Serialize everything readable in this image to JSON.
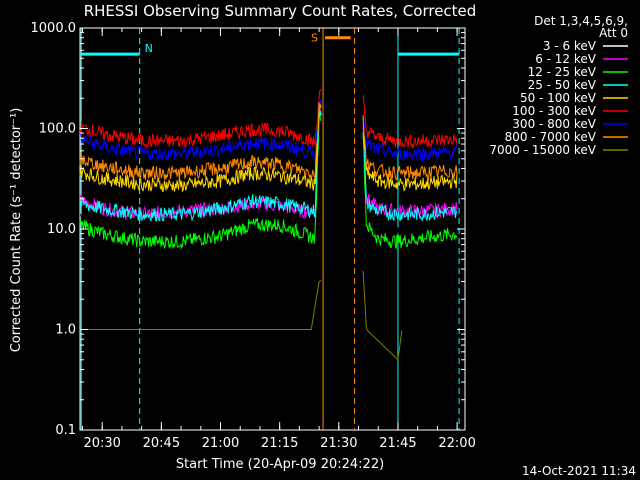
{
  "chart_data": {
    "type": "line",
    "title": "RHESSI Observing Summary Count Rates, Corrected",
    "xlabel": "Start Time (20-Apr-09 20:24:22)",
    "ylabel": "Corrected Count Rate (s⁻¹ detector⁻¹)",
    "yscale": "log",
    "ylim": [
      0.1,
      1000
    ],
    "xlim": [
      "20:24:22",
      "22:02"
    ],
    "x_ticks": [
      "20:30",
      "20:45",
      "21:00",
      "21:15",
      "21:30",
      "21:45",
      "22:00"
    ],
    "y_ticks": [
      "0.1",
      "1.0",
      "10.0",
      "100.0",
      "1000.0"
    ],
    "legend_header": [
      "Det 1,3,4,5,6,9,",
      "Att 0"
    ],
    "legend_position": "right",
    "annotations": {
      "night_label": "N",
      "saa_label": "S",
      "night_color": "#00ffff",
      "saa_color": "#ff8c00"
    },
    "series": [
      {
        "name": "3 - 6 keV",
        "color": "#000000",
        "x": [
          "20:24",
          "20:30",
          "20:40",
          "20:50",
          "21:00",
          "21:08",
          "21:15",
          "21:21",
          "21:24",
          "21:25",
          "21:36",
          "21:37",
          "21:40",
          "21:45",
          "21:50",
          "22:00"
        ],
        "values": [
          14,
          11,
          9,
          9,
          10,
          12,
          12,
          10,
          9,
          150,
          150,
          14,
          9,
          9,
          9,
          10
        ]
      },
      {
        "name": "6 - 12 keV",
        "color": "#ff00ff",
        "x": [
          "20:24",
          "20:30",
          "20:40",
          "20:50",
          "21:00",
          "21:08",
          "21:15",
          "21:21",
          "21:24",
          "21:25",
          "21:36",
          "21:37",
          "21:40",
          "21:45",
          "21:50",
          "22:00"
        ],
        "values": [
          20,
          16,
          14,
          15,
          16,
          18,
          17,
          15,
          15,
          160,
          160,
          20,
          16,
          15,
          15,
          16
        ]
      },
      {
        "name": "12 - 25 keV",
        "color": "#00ff00",
        "x": [
          "20:24",
          "20:30",
          "20:40",
          "20:50",
          "21:00",
          "21:08",
          "21:15",
          "21:21",
          "21:24",
          "21:25",
          "21:36",
          "21:37",
          "21:40",
          "21:45",
          "21:50",
          "22:00"
        ],
        "values": [
          11,
          9,
          7.5,
          7.5,
          8.5,
          11,
          11,
          9,
          8,
          140,
          140,
          11,
          8,
          7.5,
          8,
          9
        ]
      },
      {
        "name": "25 - 50 keV",
        "color": "#00ffff",
        "x": [
          "20:24",
          "20:30",
          "20:40",
          "20:50",
          "21:00",
          "21:08",
          "21:15",
          "21:21",
          "21:24",
          "21:25",
          "21:36",
          "21:37",
          "21:40",
          "21:45",
          "21:50",
          "22:00"
        ],
        "values": [
          18,
          16,
          14,
          14,
          16,
          19,
          18,
          16,
          15,
          150,
          150,
          18,
          15,
          14,
          14,
          15
        ]
      },
      {
        "name": "50 - 100 keV",
        "color": "#ffd700",
        "x": [
          "20:24",
          "20:30",
          "20:40",
          "20:50",
          "21:00",
          "21:08",
          "21:15",
          "21:21",
          "21:24",
          "21:25",
          "21:36",
          "21:37",
          "21:40",
          "21:45",
          "21:50",
          "22:00"
        ],
        "values": [
          38,
          32,
          28,
          27,
          30,
          36,
          34,
          30,
          28,
          160,
          160,
          36,
          30,
          28,
          28,
          30
        ]
      },
      {
        "name": "100 - 300 keV",
        "color": "#ff0000",
        "x": [
          "20:24",
          "20:30",
          "20:40",
          "20:50",
          "21:00",
          "21:08",
          "21:15",
          "21:21",
          "21:24",
          "21:25",
          "21:36",
          "21:37",
          "21:40",
          "21:45",
          "21:50",
          "22:00"
        ],
        "values": [
          105,
          88,
          75,
          75,
          85,
          98,
          95,
          82,
          72,
          220,
          220,
          95,
          80,
          75,
          75,
          78
        ]
      },
      {
        "name": "300 - 800 keV",
        "color": "#0000ff",
        "x": [
          "20:24",
          "20:30",
          "20:40",
          "20:50",
          "21:00",
          "21:08",
          "21:15",
          "21:21",
          "21:24",
          "21:25",
          "21:36",
          "21:37",
          "21:40",
          "21:45",
          "21:50",
          "22:00"
        ],
        "values": [
          80,
          66,
          56,
          56,
          62,
          72,
          70,
          60,
          55,
          190,
          190,
          70,
          60,
          56,
          56,
          58
        ]
      },
      {
        "name": "800 - 7000 keV",
        "color": "#ff8c00",
        "x": [
          "20:24",
          "20:30",
          "20:40",
          "20:50",
          "21:00",
          "21:08",
          "21:15",
          "21:21",
          "21:24",
          "21:25",
          "21:36",
          "21:37",
          "21:40",
          "21:45",
          "21:50",
          "22:00"
        ],
        "values": [
          50,
          42,
          36,
          36,
          40,
          46,
          44,
          38,
          36,
          170,
          170,
          45,
          38,
          36,
          36,
          38
        ]
      },
      {
        "name": "7000 - 15000 keV",
        "color": "#808000",
        "x": [
          "20:24",
          "21:00",
          "21:06",
          "21:20",
          "21:23",
          "21:25",
          "21:36",
          "21:37",
          "21:45",
          "21:46"
        ],
        "values": [
          1,
          1,
          1,
          1,
          1,
          3,
          5,
          1,
          0.5,
          1
        ]
      }
    ]
  },
  "footer": {
    "timestamp": "14-Oct-2021 11:34"
  }
}
